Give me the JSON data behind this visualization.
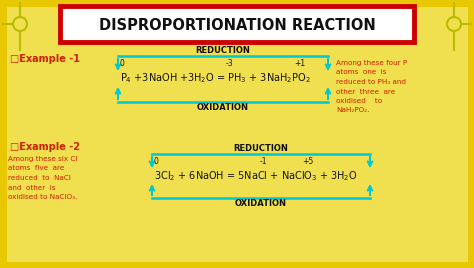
{
  "bg_color": "#f0e050",
  "title": "DISPROPORTIONATION REACTION",
  "title_bg": "#ffffff",
  "title_border": "#cc0000",
  "cyan": "#00c8d4",
  "red": "#cc2200",
  "black": "#111111",
  "example1_label": "□Example -1",
  "example2_label": "□Example -2",
  "reduction_label": "REDUCTION",
  "oxidation_label": "OXIDATION",
  "note1_lines": [
    "Among these four P",
    "atoms  one  is",
    "reduced to PH₃ and",
    "other  three  are",
    "oxidised    to",
    "NaH₂PO₂."
  ],
  "note2_lines": [
    "Among these six Cl",
    "atoms  five  are",
    "reduced  to  NaCl",
    "and  other  is",
    "oxidised to NaClO₃."
  ]
}
